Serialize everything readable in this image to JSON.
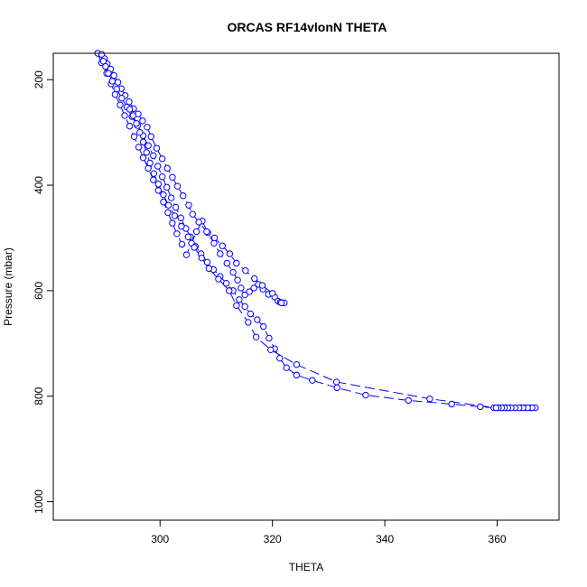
{
  "chart_data": {
    "type": "line",
    "title": "ORCAS RF14vlonN THETA",
    "xlabel": "THETA",
    "ylabel": "Pressure (mbar)",
    "xlim": [
      281,
      371
    ],
    "ylim": [
      1035,
      150
    ],
    "y_reversed": true,
    "x_ticks": [
      300,
      320,
      340,
      360
    ],
    "y_ticks": [
      200,
      400,
      600,
      800,
      1000
    ],
    "grid": false,
    "marker": "open-circle",
    "line_style": "dashed",
    "colors": {
      "series": "#0000ff",
      "axis": "#000000",
      "background": "#ffffff"
    },
    "series": [
      {
        "x": [
          288.9,
          289.6,
          290.5,
          291.3,
          292.0,
          292.9,
          293.7,
          294.6,
          295.4,
          296.2,
          297.0,
          297.9,
          298.8,
          299.7,
          300.6,
          301.4,
          302.2,
          303.0,
          303.9,
          304.7,
          305.6,
          306.5,
          307.5,
          308.5,
          309.6,
          310.7,
          311.9,
          313.0,
          313.8,
          314.4,
          315.1,
          315.9,
          316.7,
          317.5,
          318.3,
          319.3,
          320.4,
          321.0,
          321.6,
          322.1,
          321.4
        ],
        "y": [
          150,
          168,
          188,
          208,
          228,
          248,
          268,
          288,
          308,
          328,
          348,
          368,
          390,
          410,
          432,
          452,
          472,
          492,
          512,
          532,
          510,
          488,
          468,
          490,
          510,
          530,
          548,
          565,
          580,
          595,
          608,
          602,
          595,
          588,
          597,
          607,
          612,
          620,
          623,
          623,
          622
        ]
      },
      {
        "x": [
          321.6,
          320.0,
          318.2,
          316.8,
          315.2,
          313.6,
          312.4,
          311.1,
          309.7,
          308.3,
          306.9,
          305.8,
          305.1,
          304.1,
          303.1,
          302.2,
          301.3,
          300.4,
          299.4,
          298.4,
          297.7,
          296.9,
          296.1,
          295.3,
          294.5,
          293.8,
          293.1,
          292.5,
          291.8,
          291.2,
          290.6,
          290.1,
          289.6
        ],
        "y": [
          623,
          605,
          590,
          577,
          562,
          548,
          530,
          515,
          500,
          488,
          470,
          455,
          438,
          420,
          402,
          385,
          368,
          350,
          330,
          308,
          290,
          278,
          265,
          255,
          242,
          230,
          217,
          205,
          192,
          180,
          170,
          160,
          152
        ]
      },
      {
        "x": [
          289.9,
          290.3,
          290.8,
          291.5,
          292.3,
          293.2,
          294.1,
          295.0,
          296.0,
          297.0,
          297.9,
          298.8,
          299.6,
          300.4,
          301.2,
          302.0,
          302.8,
          303.7,
          304.6,
          305.4,
          306.3,
          307.3,
          308.4,
          309.5,
          310.7,
          311.8,
          313.0,
          314.1,
          315.1,
          316.1,
          317.3,
          318.4,
          319.4,
          320.4,
          321.3,
          322.5,
          324.3,
          327.1,
          331.5,
          336.6,
          344.2,
          351.9,
          357.0,
          359.4,
          360.0,
          360.7,
          361.5,
          362.3,
          363.2,
          364.1,
          365.0,
          366.0,
          366.8
        ],
        "y": [
          165,
          175,
          188,
          203,
          218,
          235,
          252,
          270,
          287,
          306,
          325,
          344,
          364,
          384,
          404,
          424,
          442,
          462,
          482,
          498,
          516,
          530,
          546,
          560,
          573,
          586,
          600,
          617,
          630,
          644,
          655,
          668,
          690,
          710,
          728,
          746,
          760,
          770,
          784,
          798,
          808,
          815,
          820,
          822,
          822,
          822,
          822,
          822,
          822,
          822,
          822,
          822,
          822
        ]
      },
      {
        "x": [
          366.2,
          365.4,
          364.6,
          363.9,
          363.2,
          362.5,
          361.9,
          361.3,
          360.8,
          360.2,
          359.8,
          348.0,
          331.4,
          324.3,
          319.7,
          317.1,
          315.7,
          313.6,
          312.3,
          310.4,
          308.7,
          307.4,
          306.1,
          305.0,
          303.8,
          302.6,
          301.5,
          300.6,
          299.7,
          298.9,
          298.2,
          297.6,
          297.0,
          296.4,
          295.8,
          295.2,
          294.6
        ],
        "y": [
          822,
          822,
          822,
          822,
          822,
          822,
          822,
          822,
          822,
          822,
          822,
          805,
          773,
          740,
          712,
          688,
          660,
          628,
          600,
          578,
          558,
          538,
          518,
          498,
          478,
          458,
          438,
          418,
          398,
          378,
          358,
          338,
          318,
          300,
          283,
          268,
          256
        ]
      }
    ]
  }
}
